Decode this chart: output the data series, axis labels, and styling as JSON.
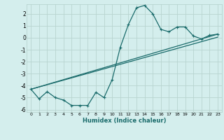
{
  "xlabel": "Humidex (Indice chaleur)",
  "bg_color": "#d4eeed",
  "grid_color": "#b8d4d0",
  "line_color": "#1a6b6b",
  "xlim": [
    -0.5,
    23.5
  ],
  "ylim": [
    -6.2,
    2.8
  ],
  "yticks": [
    -6,
    -5,
    -4,
    -3,
    -2,
    -1,
    0,
    1,
    2
  ],
  "xticks": [
    0,
    1,
    2,
    3,
    4,
    5,
    6,
    7,
    8,
    9,
    10,
    11,
    12,
    13,
    14,
    15,
    16,
    17,
    18,
    19,
    20,
    21,
    22,
    23
  ],
  "curve1_x": [
    0,
    1,
    2,
    3,
    4,
    5,
    6,
    7,
    8,
    9,
    10,
    11,
    12,
    13,
    14,
    15,
    16,
    17,
    18,
    19,
    20,
    21,
    22,
    23
  ],
  "curve1_y": [
    -4.3,
    -5.1,
    -4.5,
    -5.0,
    -5.2,
    -5.65,
    -5.65,
    -5.65,
    -4.55,
    -5.0,
    -3.5,
    -0.8,
    1.1,
    2.5,
    2.7,
    2.0,
    0.7,
    0.5,
    0.9,
    0.9,
    0.15,
    -0.1,
    0.2,
    0.3
  ],
  "line1_x": [
    0,
    23
  ],
  "line1_y": [
    -4.3,
    0.3
  ],
  "line2_x": [
    0,
    23
  ],
  "line2_y": [
    -4.3,
    0.05
  ]
}
